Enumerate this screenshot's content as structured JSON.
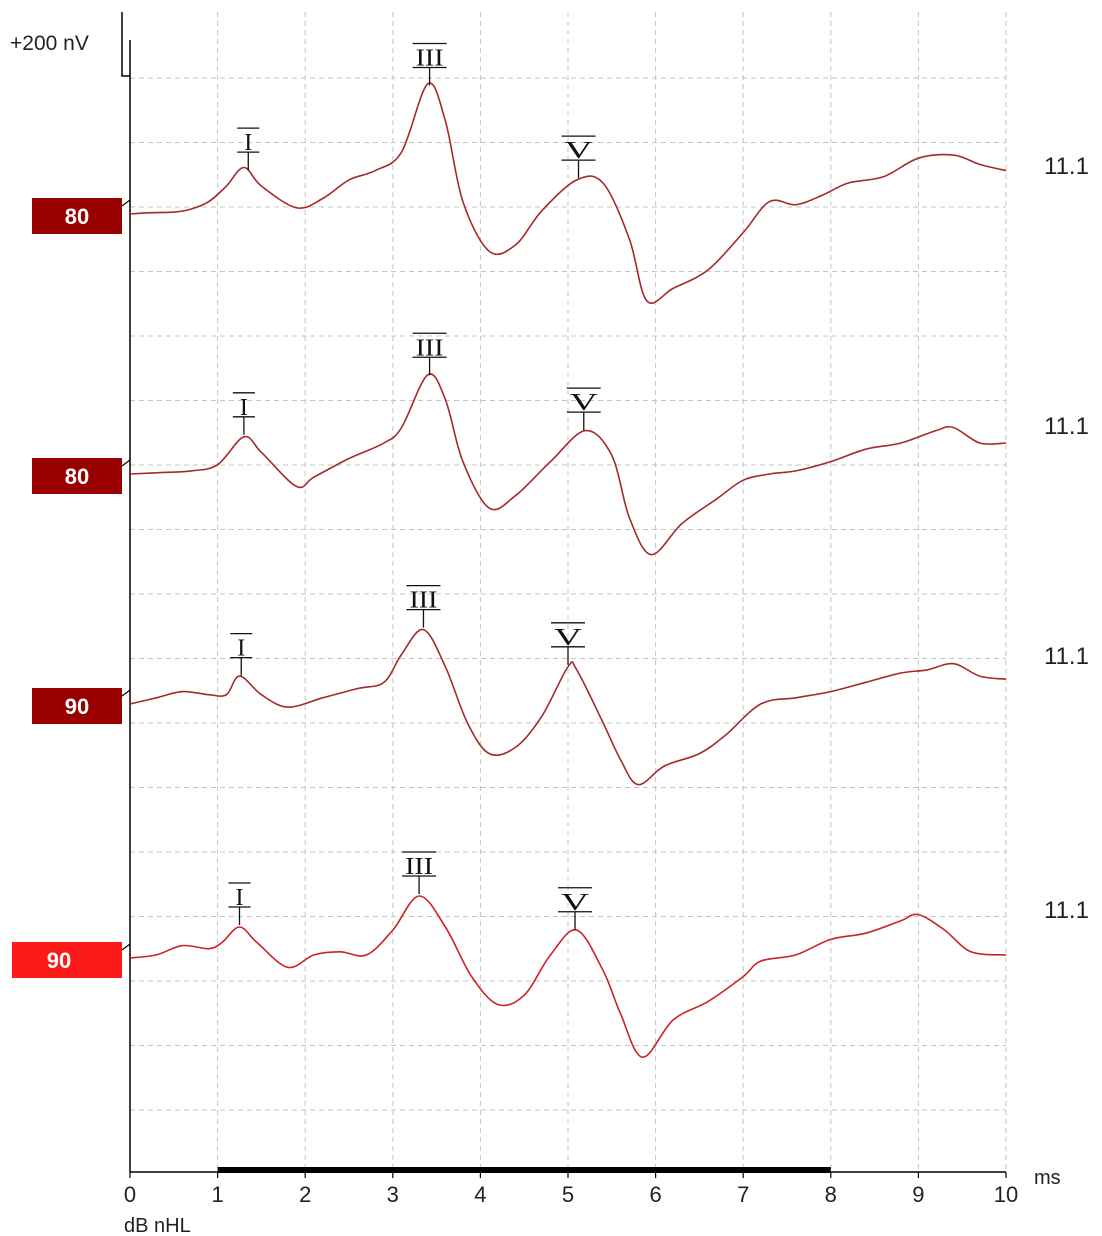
{
  "chart_data": {
    "type": "line",
    "title": "",
    "xlabel": "ms",
    "ylabel": "dB nHL",
    "amplitude_scale_label": "+200 nV",
    "xlim": [
      0,
      10
    ],
    "x_ticks": [
      "0",
      "1",
      "2",
      "3",
      "4",
      "5",
      "6",
      "7",
      "8",
      "9",
      "10"
    ],
    "stimulus_bar_ms": [
      1,
      8
    ],
    "grid": true,
    "grid_style": "dashed",
    "colors": {
      "trace": "#a52a2a",
      "trace_last": "#cc2222",
      "label_dark": "#9b0000",
      "label_bright": "#ff1a1a",
      "grid": "#c4c4c4",
      "axis": "#000000"
    },
    "series": [
      {
        "level_label": "80",
        "right_label": "11.1",
        "highlight": false,
        "points_uV": [
          [
            0,
            0
          ],
          [
            0.2,
            0.02
          ],
          [
            0.5,
            0.03
          ],
          [
            0.7,
            0.08
          ],
          [
            0.9,
            0.2
          ],
          [
            1.1,
            0.45
          ],
          [
            1.3,
            0.75
          ],
          [
            1.5,
            0.45
          ],
          [
            1.9,
            0.1
          ],
          [
            2.2,
            0.25
          ],
          [
            2.5,
            0.55
          ],
          [
            2.8,
            0.7
          ],
          [
            3.1,
            1.0
          ],
          [
            3.4,
            2.1
          ],
          [
            3.6,
            1.5
          ],
          [
            3.8,
            0.2
          ],
          [
            4.1,
            -0.6
          ],
          [
            4.4,
            -0.5
          ],
          [
            4.7,
            0.05
          ],
          [
            5.1,
            0.55
          ],
          [
            5.4,
            0.5
          ],
          [
            5.7,
            -0.4
          ],
          [
            5.9,
            -1.4
          ],
          [
            6.2,
            -1.2
          ],
          [
            6.6,
            -0.9
          ],
          [
            7.0,
            -0.3
          ],
          [
            7.3,
            0.2
          ],
          [
            7.6,
            0.15
          ],
          [
            7.9,
            0.3
          ],
          [
            8.2,
            0.5
          ],
          [
            8.6,
            0.6
          ],
          [
            9.0,
            0.9
          ],
          [
            9.4,
            0.95
          ],
          [
            9.7,
            0.8
          ],
          [
            10,
            0.7
          ]
        ],
        "peaks": [
          {
            "label": "I",
            "latency_ms": 1.35
          },
          {
            "label": "III",
            "latency_ms": 3.42
          },
          {
            "label": "V",
            "latency_ms": 5.12
          }
        ]
      },
      {
        "level_label": "80",
        "right_label": "11.1",
        "highlight": false,
        "points_uV": [
          [
            0,
            0
          ],
          [
            0.3,
            0.02
          ],
          [
            0.7,
            0.05
          ],
          [
            1.0,
            0.15
          ],
          [
            1.3,
            0.6
          ],
          [
            1.5,
            0.35
          ],
          [
            1.9,
            -0.2
          ],
          [
            2.1,
            -0.05
          ],
          [
            2.5,
            0.25
          ],
          [
            2.9,
            0.5
          ],
          [
            3.1,
            0.75
          ],
          [
            3.4,
            1.6
          ],
          [
            3.6,
            1.2
          ],
          [
            3.8,
            0.2
          ],
          [
            4.1,
            -0.55
          ],
          [
            4.4,
            -0.35
          ],
          [
            4.8,
            0.2
          ],
          [
            5.2,
            0.7
          ],
          [
            5.5,
            0.3
          ],
          [
            5.7,
            -0.7
          ],
          [
            5.95,
            -1.3
          ],
          [
            6.3,
            -0.8
          ],
          [
            6.7,
            -0.4
          ],
          [
            7.0,
            -0.1
          ],
          [
            7.3,
            0.0
          ],
          [
            7.6,
            0.05
          ],
          [
            8.0,
            0.2
          ],
          [
            8.4,
            0.4
          ],
          [
            8.8,
            0.5
          ],
          [
            9.2,
            0.7
          ],
          [
            9.4,
            0.75
          ],
          [
            9.7,
            0.5
          ],
          [
            10,
            0.5
          ]
        ],
        "peaks": [
          {
            "label": "I",
            "latency_ms": 1.3
          },
          {
            "label": "III",
            "latency_ms": 3.42
          },
          {
            "label": "V",
            "latency_ms": 5.18
          }
        ]
      },
      {
        "level_label": "90",
        "right_label": "11.1",
        "highlight": false,
        "points_uV": [
          [
            0,
            0
          ],
          [
            0.3,
            0.1
          ],
          [
            0.6,
            0.2
          ],
          [
            0.9,
            0.15
          ],
          [
            1.1,
            0.15
          ],
          [
            1.25,
            0.45
          ],
          [
            1.5,
            0.15
          ],
          [
            1.8,
            -0.05
          ],
          [
            2.2,
            0.1
          ],
          [
            2.6,
            0.25
          ],
          [
            2.9,
            0.35
          ],
          [
            3.1,
            0.8
          ],
          [
            3.35,
            1.2
          ],
          [
            3.6,
            0.6
          ],
          [
            3.85,
            -0.3
          ],
          [
            4.1,
            -0.8
          ],
          [
            4.4,
            -0.7
          ],
          [
            4.7,
            -0.2
          ],
          [
            5.0,
            0.6
          ],
          [
            5.1,
            0.55
          ],
          [
            5.4,
            -0.3
          ],
          [
            5.6,
            -0.9
          ],
          [
            5.8,
            -1.3
          ],
          [
            6.1,
            -1.0
          ],
          [
            6.5,
            -0.8
          ],
          [
            6.8,
            -0.5
          ],
          [
            7.2,
            0.0
          ],
          [
            7.6,
            0.1
          ],
          [
            8.0,
            0.2
          ],
          [
            8.4,
            0.35
          ],
          [
            8.8,
            0.5
          ],
          [
            9.1,
            0.55
          ],
          [
            9.4,
            0.65
          ],
          [
            9.7,
            0.45
          ],
          [
            10,
            0.4
          ]
        ],
        "peaks": [
          {
            "label": "I",
            "latency_ms": 1.27
          },
          {
            "label": "III",
            "latency_ms": 3.35
          },
          {
            "label": "V",
            "latency_ms": 5.0
          }
        ]
      },
      {
        "level_label": "90",
        "right_label": "11.1",
        "highlight": true,
        "points_uV": [
          [
            0,
            0
          ],
          [
            0.3,
            0.05
          ],
          [
            0.6,
            0.2
          ],
          [
            0.9,
            0.15
          ],
          [
            1.05,
            0.25
          ],
          [
            1.25,
            0.5
          ],
          [
            1.45,
            0.25
          ],
          [
            1.8,
            -0.15
          ],
          [
            2.1,
            0.05
          ],
          [
            2.4,
            0.1
          ],
          [
            2.7,
            0.05
          ],
          [
            3.0,
            0.45
          ],
          [
            3.3,
            1.0
          ],
          [
            3.6,
            0.5
          ],
          [
            3.9,
            -0.3
          ],
          [
            4.2,
            -0.75
          ],
          [
            4.5,
            -0.6
          ],
          [
            4.8,
            0.05
          ],
          [
            5.1,
            0.45
          ],
          [
            5.4,
            -0.2
          ],
          [
            5.6,
            -0.9
          ],
          [
            5.85,
            -1.6
          ],
          [
            6.2,
            -1.0
          ],
          [
            6.6,
            -0.7
          ],
          [
            7.0,
            -0.3
          ],
          [
            7.2,
            -0.05
          ],
          [
            7.6,
            0.05
          ],
          [
            8.0,
            0.3
          ],
          [
            8.4,
            0.4
          ],
          [
            8.8,
            0.6
          ],
          [
            9.0,
            0.7
          ],
          [
            9.3,
            0.45
          ],
          [
            9.6,
            0.1
          ],
          [
            10,
            0.05
          ]
        ],
        "peaks": [
          {
            "label": "I",
            "latency_ms": 1.25
          },
          {
            "label": "III",
            "latency_ms": 3.3
          },
          {
            "label": "V",
            "latency_ms": 5.08
          }
        ]
      }
    ]
  }
}
